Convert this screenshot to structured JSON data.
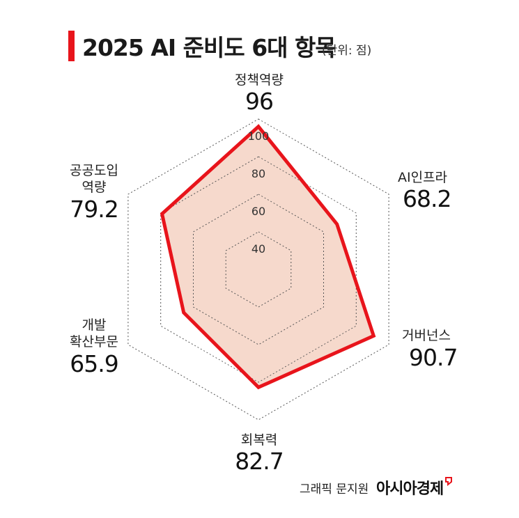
{
  "title": "2025 AI 준비도 6대 항목",
  "unit": "(단위: 점)",
  "chart_data": {
    "type": "radar",
    "title": "2025 AI 준비도 6대 항목",
    "unit": "(단위: 점)",
    "rlim": [
      20,
      100
    ],
    "rings": [
      40,
      60,
      80,
      100
    ],
    "ring_labels": [
      "40",
      "60",
      "80",
      "100"
    ],
    "axes": [
      {
        "label_lines": [
          "정책역량"
        ],
        "value": 96,
        "value_label": "96"
      },
      {
        "label_lines": [
          "AI인프라"
        ],
        "value": 68.2,
        "value_label": "68.2"
      },
      {
        "label_lines": [
          "거버넌스"
        ],
        "value": 90.7,
        "value_label": "90.7"
      },
      {
        "label_lines": [
          "회복력"
        ],
        "value": 82.7,
        "value_label": "82.7"
      },
      {
        "label_lines": [
          "개발",
          "확산부문"
        ],
        "value": 65.9,
        "value_label": "65.9"
      },
      {
        "label_lines": [
          "공공도입",
          "역량"
        ],
        "value": 79.2,
        "value_label": "79.2"
      }
    ],
    "colors": {
      "line": "#e8141b",
      "fill": "#f6d9cc",
      "grid": "#555555"
    }
  },
  "footer": {
    "credit": "그래픽 문지원",
    "brand": "아시아경제"
  }
}
